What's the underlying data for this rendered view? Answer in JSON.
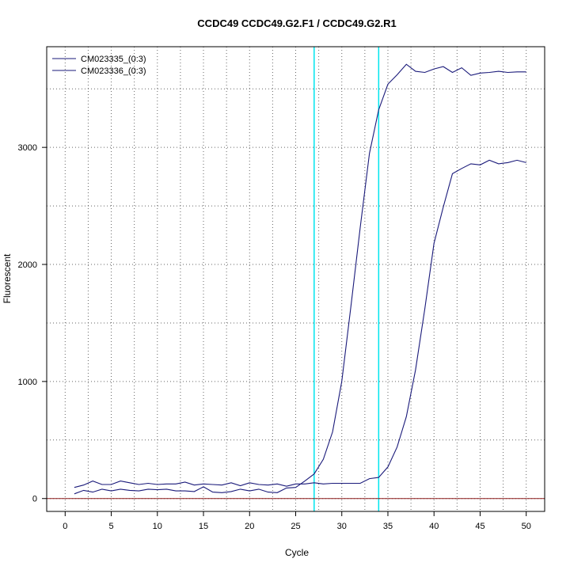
{
  "chart_data": {
    "type": "line",
    "title": "CCDC49  CCDC49.G2.F1 / CCDC49.G2.R1",
    "xlabel": "Cycle",
    "ylabel": "Fluorescent",
    "xlim": [
      -2,
      52
    ],
    "ylim": [
      -110,
      3860
    ],
    "xticks": [
      0,
      5,
      10,
      15,
      20,
      25,
      30,
      35,
      40,
      45,
      50
    ],
    "yticks": [
      0,
      1000,
      2000,
      3000
    ],
    "grid": true,
    "legend_position": "top-left",
    "threshold_line": 0,
    "vertical_lines": [
      27,
      34
    ],
    "colors": {
      "series": "#1a1a7a",
      "vertical_lines": "#00e5ee",
      "threshold": "#8b1a1a",
      "grid": "#666666"
    },
    "x": [
      1,
      2,
      3,
      4,
      5,
      6,
      7,
      8,
      9,
      10,
      11,
      12,
      13,
      14,
      15,
      16,
      17,
      18,
      19,
      20,
      21,
      22,
      23,
      24,
      25,
      26,
      27,
      28,
      29,
      30,
      31,
      32,
      33,
      34,
      35,
      36,
      37,
      38,
      39,
      40,
      41,
      42,
      43,
      44,
      45,
      46,
      47,
      48,
      49,
      50
    ],
    "series": [
      {
        "name": "CM023335_(0:3)",
        "values": [
          95,
          115,
          150,
          120,
          120,
          150,
          135,
          120,
          130,
          120,
          125,
          125,
          140,
          115,
          125,
          120,
          115,
          135,
          110,
          135,
          120,
          115,
          125,
          105,
          125,
          125,
          135,
          125,
          130,
          130,
          130,
          130,
          170,
          180,
          270,
          440,
          700,
          1100,
          1620,
          2180,
          2490,
          2775,
          2820,
          2860,
          2850,
          2890,
          2860,
          2870,
          2890,
          2870
        ]
      },
      {
        "name": "CM023336_(0:3)",
        "values": [
          40,
          70,
          55,
          80,
          65,
          80,
          70,
          65,
          80,
          75,
          80,
          65,
          65,
          60,
          100,
          55,
          50,
          60,
          80,
          65,
          80,
          55,
          50,
          90,
          95,
          150,
          210,
          335,
          570,
          1000,
          1650,
          2315,
          2950,
          3320,
          3540,
          3620,
          3710,
          3650,
          3640,
          3670,
          3690,
          3640,
          3680,
          3615,
          3635,
          3640,
          3650,
          3640,
          3645,
          3645
        ]
      }
    ]
  }
}
